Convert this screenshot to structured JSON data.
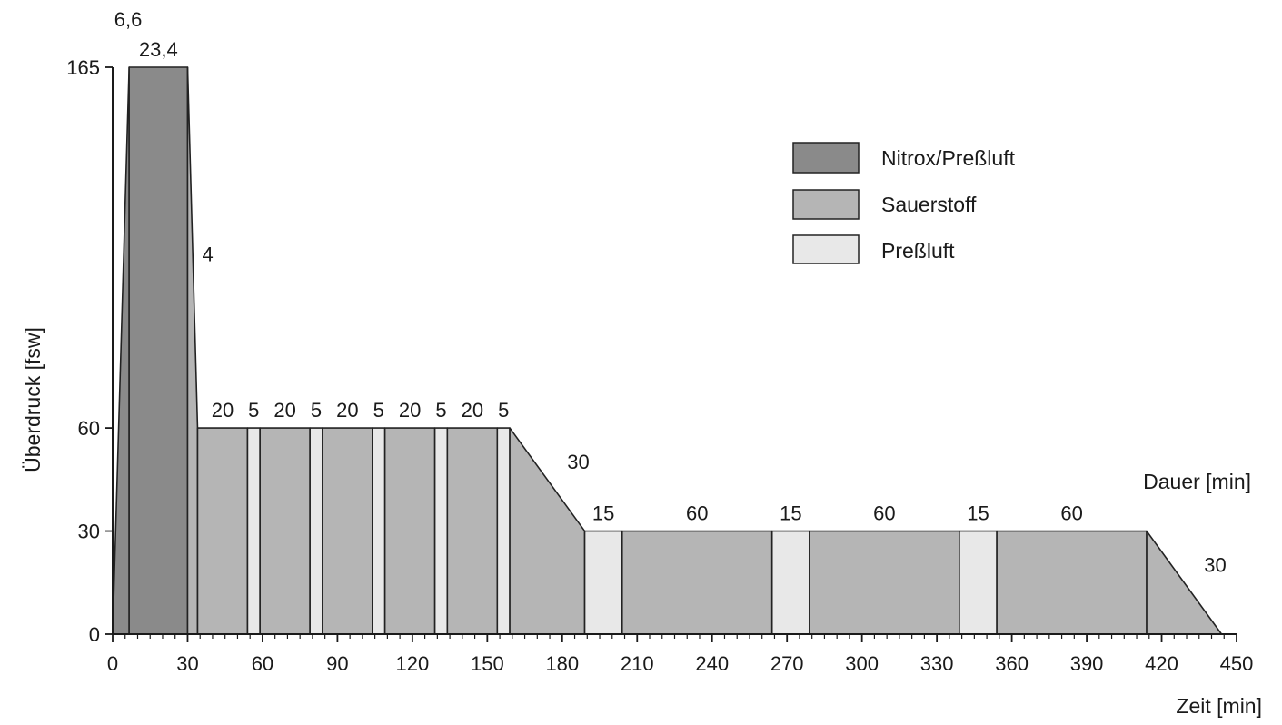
{
  "chart_data": {
    "type": "area",
    "title": "",
    "xlabel": "Zeit [min]",
    "ylabel": "Überdruck [fsw]",
    "duration_label": "Dauer [min]",
    "xlim": [
      0,
      450
    ],
    "ylim": [
      0,
      165
    ],
    "x_ticks": [
      0,
      30,
      60,
      90,
      120,
      150,
      180,
      210,
      240,
      270,
      300,
      330,
      360,
      390,
      420,
      450
    ],
    "y_ticks": [
      0,
      30,
      60,
      165
    ],
    "legend_position": "top-right",
    "legend": [
      {
        "key": "nitrox",
        "label": "Nitrox/Preßluft",
        "color": "#8a8a8a"
      },
      {
        "key": "o2",
        "label": "Sauerstoff",
        "color": "#b5b5b5"
      },
      {
        "key": "air",
        "label": "Preßluft",
        "color": "#e8e8e8"
      }
    ],
    "profile": [
      [
        0,
        0
      ],
      [
        6.6,
        165
      ],
      [
        30,
        165
      ],
      [
        34,
        60
      ],
      [
        159,
        60
      ],
      [
        189,
        30
      ],
      [
        414,
        30
      ],
      [
        444,
        0
      ]
    ],
    "segments": [
      {
        "gas": "nitrox",
        "start": 0,
        "duration": 6.6,
        "label": "6,6"
      },
      {
        "gas": "nitrox",
        "start": 6.6,
        "duration": 23.4,
        "label": "23,4"
      },
      {
        "gas": "o2",
        "start": 30,
        "duration": 4,
        "label": "4"
      },
      {
        "gas": "o2",
        "start": 34,
        "duration": 20,
        "label": "20"
      },
      {
        "gas": "air",
        "start": 54,
        "duration": 5,
        "label": "5"
      },
      {
        "gas": "o2",
        "start": 59,
        "duration": 20,
        "label": "20"
      },
      {
        "gas": "air",
        "start": 79,
        "duration": 5,
        "label": "5"
      },
      {
        "gas": "o2",
        "start": 84,
        "duration": 20,
        "label": "20"
      },
      {
        "gas": "air",
        "start": 104,
        "duration": 5,
        "label": "5"
      },
      {
        "gas": "o2",
        "start": 109,
        "duration": 20,
        "label": "20"
      },
      {
        "gas": "air",
        "start": 129,
        "duration": 5,
        "label": "5"
      },
      {
        "gas": "o2",
        "start": 134,
        "duration": 20,
        "label": "20"
      },
      {
        "gas": "air",
        "start": 154,
        "duration": 5,
        "label": "5"
      },
      {
        "gas": "o2",
        "start": 159,
        "duration": 30,
        "label": "30"
      },
      {
        "gas": "air",
        "start": 189,
        "duration": 15,
        "label": "15"
      },
      {
        "gas": "o2",
        "start": 204,
        "duration": 60,
        "label": "60"
      },
      {
        "gas": "air",
        "start": 264,
        "duration": 15,
        "label": "15"
      },
      {
        "gas": "o2",
        "start": 279,
        "duration": 60,
        "label": "60"
      },
      {
        "gas": "air",
        "start": 339,
        "duration": 15,
        "label": "15"
      },
      {
        "gas": "o2",
        "start": 354,
        "duration": 60,
        "label": "60"
      },
      {
        "gas": "o2",
        "start": 414,
        "duration": 30,
        "label": "30"
      }
    ]
  }
}
